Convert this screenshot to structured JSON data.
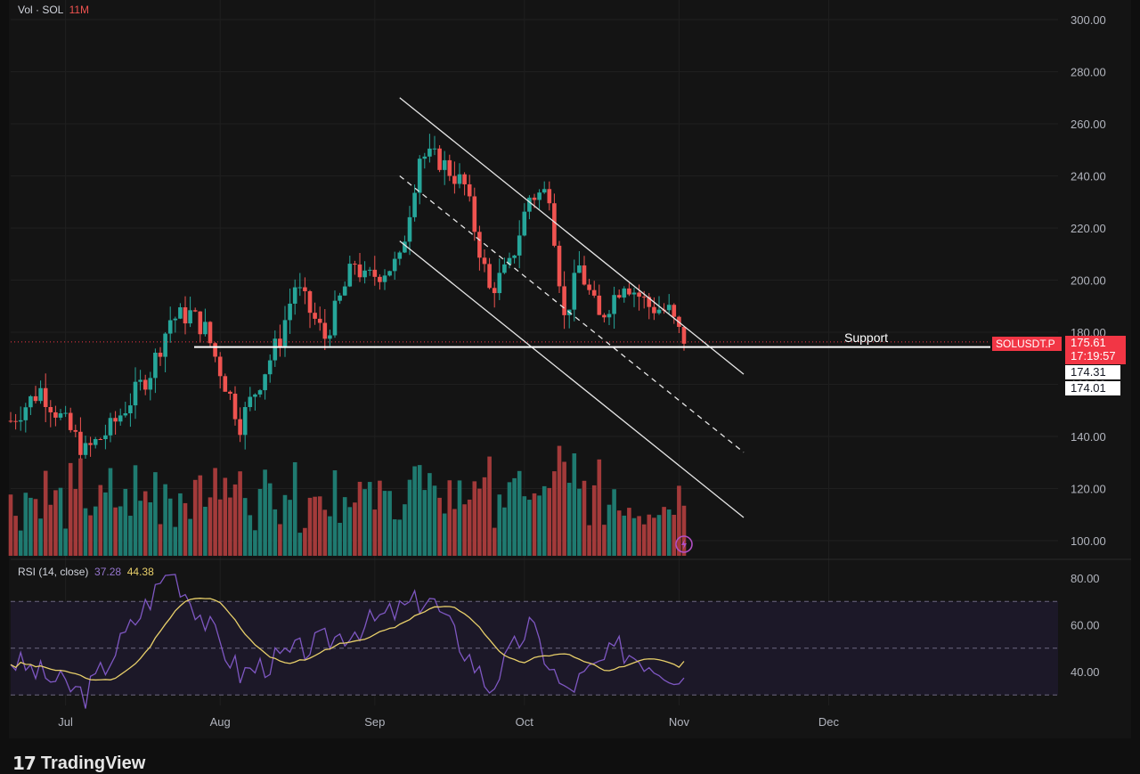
{
  "header": {
    "volume_title": "Vol · SOL",
    "volume_value": "11M",
    "rsi_title": "RSI (14, close)",
    "rsi_value": "37.28",
    "rsi_ma_value": "44.38"
  },
  "annotations": {
    "support_label": "Support",
    "symbol_tag": "SOLUSDT.P",
    "last_price": "175.61",
    "countdown": "17:19:57",
    "level_1": "174.31",
    "level_2": "174.01"
  },
  "branding": {
    "logo_text": "TradingView"
  },
  "colors": {
    "up": "#26a69a",
    "down": "#ef5350",
    "vol_up": "#1f7a70",
    "vol_down": "#a33a3a",
    "rsi_line": "#7e57c2",
    "rsi_ma": "#e8cf6a",
    "grid": "#1f1f1f",
    "tag_red": "#f23645"
  },
  "chart_data": [
    {
      "type": "candlestick",
      "symbol": "SOLUSDT.P",
      "y_axis": {
        "ticks": [
          "300.00",
          "280.00",
          "260.00",
          "240.00",
          "220.00",
          "200.00",
          "180.00",
          "160.00",
          "140.00",
          "120.00",
          "100.00"
        ],
        "range": [
          97,
          303
        ]
      },
      "x_axis": {
        "ticks": [
          "Jul",
          "Aug",
          "Sep",
          "Oct",
          "Nov",
          "Dec"
        ]
      },
      "candles_summary": {
        "anchors": [
          {
            "date": "2024-06-20",
            "close": 146
          },
          {
            "date": "2024-06-26",
            "close": 158
          },
          {
            "date": "2024-07-05",
            "close": 134
          },
          {
            "date": "2024-07-10",
            "close": 143
          },
          {
            "date": "2024-07-18",
            "close": 165
          },
          {
            "date": "2024-07-22",
            "close": 185
          },
          {
            "date": "2024-07-26",
            "close": 187
          },
          {
            "date": "2024-07-29",
            "close": 181
          },
          {
            "date": "2024-08-05",
            "close": 145
          },
          {
            "date": "2024-08-13",
            "close": 178
          },
          {
            "date": "2024-08-16",
            "close": 198
          },
          {
            "date": "2024-08-22",
            "close": 178
          },
          {
            "date": "2024-08-28",
            "close": 207
          },
          {
            "date": "2024-08-30",
            "close": 200
          },
          {
            "date": "2024-09-06",
            "close": 207
          },
          {
            "date": "2024-09-10",
            "close": 248
          },
          {
            "date": "2024-09-14",
            "close": 246
          },
          {
            "date": "2024-09-19",
            "close": 236
          },
          {
            "date": "2024-09-24",
            "close": 196
          },
          {
            "date": "2024-09-28",
            "close": 205
          },
          {
            "date": "2024-10-02",
            "close": 232
          },
          {
            "date": "2024-10-06",
            "close": 234
          },
          {
            "date": "2024-10-09",
            "close": 185
          },
          {
            "date": "2024-10-12",
            "close": 205
          },
          {
            "date": "2024-10-16",
            "close": 185
          },
          {
            "date": "2024-10-21",
            "close": 200
          },
          {
            "date": "2024-10-26",
            "close": 190
          },
          {
            "date": "2024-10-30",
            "close": 188
          },
          {
            "date": "2024-11-02",
            "close": 175.61
          }
        ]
      },
      "last_close": 175.61,
      "support_level": 174.31,
      "lines": [
        {
          "name": "upper channel",
          "points": [
            [
              "2024-09-06",
              270
            ],
            [
              "2024-10-28",
              190
            ]
          ]
        },
        {
          "name": "middle channel (dashed)",
          "points": [
            [
              "2024-09-06",
              240
            ],
            [
              "2024-10-28",
              160
            ]
          ]
        },
        {
          "name": "lower channel",
          "points": [
            [
              "2024-09-06",
              215
            ],
            [
              "2024-10-28",
              135
            ]
          ]
        },
        {
          "name": "Support",
          "value": 174.31
        }
      ]
    },
    {
      "type": "bar",
      "name": "Vol · SOL",
      "current": "11M",
      "note": "volume bars colored by candle direction"
    },
    {
      "type": "line",
      "name": "RSI (14, close)",
      "y_axis": {
        "ticks": [
          "80.00",
          "60.00",
          "40.00"
        ],
        "range": [
          25,
          88
        ]
      },
      "bands": [
        30,
        50,
        70
      ],
      "last_rsi": 37.28,
      "last_ma": 44.38,
      "rsi_anchors": [
        {
          "date": "2024-06-20",
          "rsi": 45
        },
        {
          "date": "2024-07-05",
          "rsi": 30
        },
        {
          "date": "2024-07-22",
          "rsi": 84
        },
        {
          "date": "2024-08-05",
          "rsi": 39
        },
        {
          "date": "2024-08-28",
          "rsi": 58
        },
        {
          "date": "2024-09-12",
          "rsi": 72
        },
        {
          "date": "2024-09-24",
          "rsi": 33
        },
        {
          "date": "2024-10-02",
          "rsi": 60
        },
        {
          "date": "2024-10-09",
          "rsi": 31
        },
        {
          "date": "2024-10-20",
          "rsi": 50
        },
        {
          "date": "2024-11-02",
          "rsi": 37.28
        }
      ]
    }
  ]
}
